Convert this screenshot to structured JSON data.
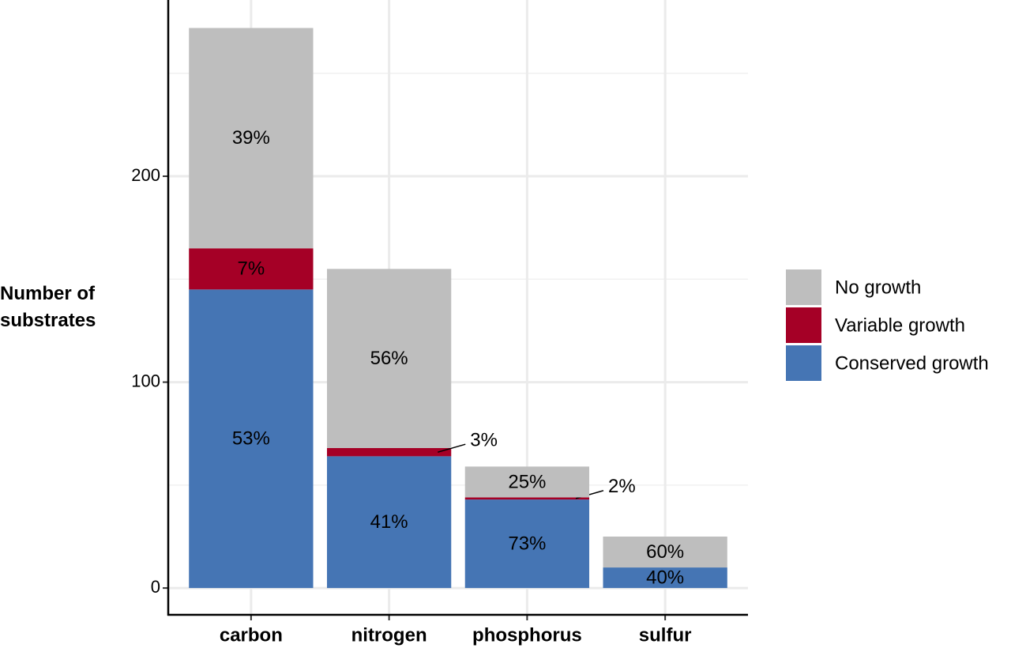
{
  "chart_data": {
    "type": "stacked_bar",
    "y_label": "Number of substrates",
    "categories": [
      "carbon",
      "nitrogen",
      "phosphorus",
      "sulfur"
    ],
    "series": [
      {
        "name": "Conserved growth",
        "color": "#4575b4",
        "values": [
          145,
          64,
          43,
          10
        ],
        "share_labels": [
          "53%",
          "41%",
          "73%",
          "40%"
        ]
      },
      {
        "name": "Variable growth",
        "color": "#a50026",
        "values": [
          20,
          4,
          1,
          0
        ],
        "share_labels": [
          "7%",
          "3%",
          "2%",
          null
        ]
      },
      {
        "name": "No growth",
        "color": "#bebebe",
        "values": [
          107,
          87,
          15,
          15
        ],
        "share_labels": [
          "39%",
          "56%",
          "25%",
          "60%"
        ]
      }
    ],
    "ylim": [
      -13,
      285.6
    ],
    "yticks": [
      0,
      100,
      200
    ],
    "minor_yticks": [
      50,
      150,
      250
    ],
    "grid": true,
    "legend": "right"
  }
}
